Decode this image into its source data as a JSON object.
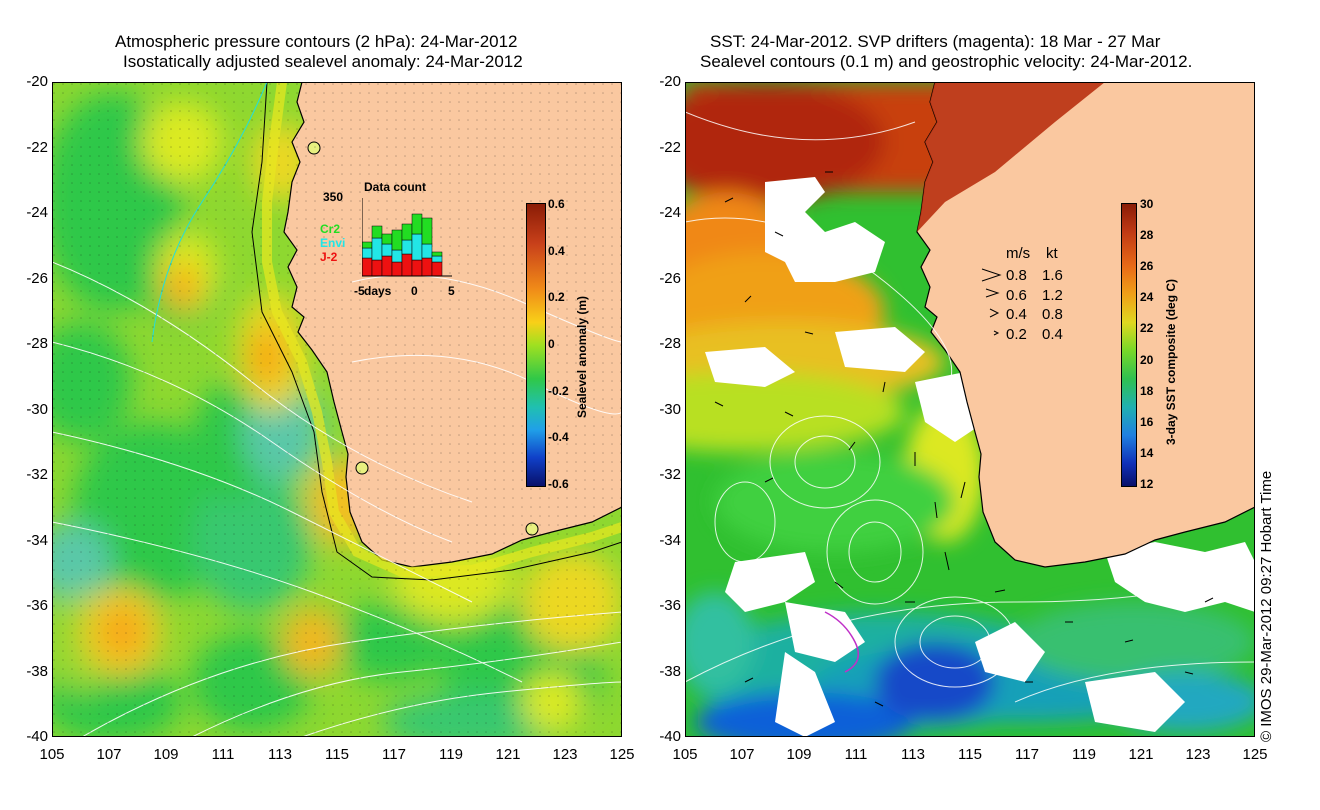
{
  "left_panel": {
    "title_line1": "Atmospheric pressure contours (2 hPa): 24-Mar-2012",
    "title_line2": "Isostatically adjusted sealevel anomaly: 24-Mar-2012",
    "colorbar": {
      "label": "Sealevel anomaly (m)",
      "ticks": [
        "0.6",
        "0.4",
        "0.2",
        "0",
        "-0.2",
        "-0.4",
        "-0.6"
      ],
      "range": [
        -0.6,
        0.6
      ]
    },
    "inset": {
      "title": "Data count",
      "y_max": "350",
      "x_ticks": [
        "-5",
        "days",
        "0",
        "5"
      ],
      "legend": [
        {
          "label": "Cr2",
          "color": "#22dd22"
        },
        {
          "label": "Envi",
          "color": "#22e6e6"
        },
        {
          "label": "J-2",
          "color": "#ee1111"
        }
      ]
    }
  },
  "right_panel": {
    "title_line1": "SST: 24-Mar-2012. SVP drifters (magenta): 18 Mar - 27 Mar",
    "title_line2": "Sealevel contours (0.1 m) and geostrophic velocity: 24-Mar-2012.",
    "colorbar": {
      "label": "3-day SST composite (deg C)",
      "ticks": [
        "30",
        "28",
        "26",
        "24",
        "22",
        "20",
        "18",
        "16",
        "14",
        "12"
      ],
      "range": [
        12,
        30
      ]
    },
    "vector_legend": {
      "header_ms": "m/s",
      "header_kt": "kt",
      "rows": [
        {
          "ms": "0.8",
          "kt": "1.6"
        },
        {
          "ms": "0.6",
          "kt": "1.2"
        },
        {
          "ms": "0.4",
          "kt": "0.8"
        },
        {
          "ms": "0.2",
          "kt": "0.4"
        }
      ]
    }
  },
  "axes": {
    "y_ticks": [
      "-20",
      "-22",
      "-24",
      "-26",
      "-28",
      "-30",
      "-32",
      "-34",
      "-36",
      "-38",
      "-40"
    ],
    "x_ticks": [
      "105",
      "107",
      "109",
      "111",
      "113",
      "115",
      "117",
      "119",
      "121",
      "123",
      "125"
    ],
    "lat_range": [
      -40,
      -20
    ],
    "lon_range": [
      105,
      125
    ]
  },
  "credit": "© IMOS 29-Mar-2012 09:27 Hobart Time",
  "colors": {
    "land": "#fac8a0",
    "cloud": "#ffffff"
  }
}
